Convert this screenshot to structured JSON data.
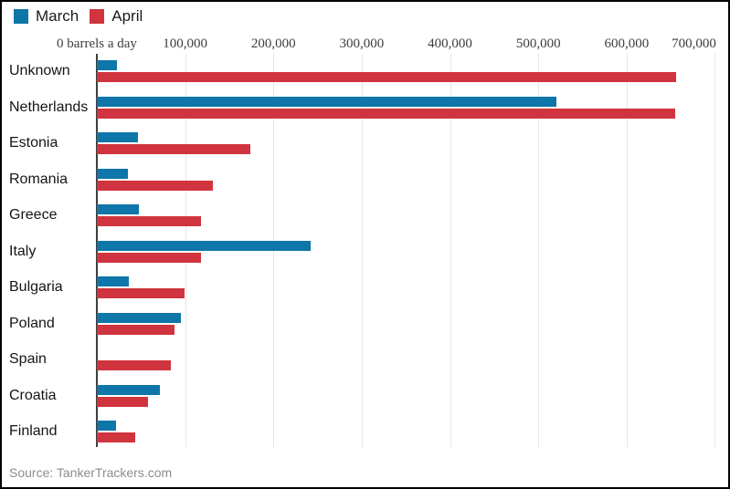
{
  "legend": {
    "items": [
      {
        "label": "March",
        "color": "#0e76a8"
      },
      {
        "label": "April",
        "color": "#d0343f"
      }
    ]
  },
  "source": {
    "label": "Source: TankerTrackers.com"
  },
  "chart_data": {
    "type": "bar",
    "orientation": "horizontal",
    "title": "",
    "xlabel": "barrels a day",
    "ylabel": "",
    "xlim": [
      0,
      715000
    ],
    "grid": true,
    "legend_position": "top-left",
    "x_ticks": [
      {
        "value": 0,
        "label": "0 barrels a day"
      },
      {
        "value": 100000,
        "label": "100,000"
      },
      {
        "value": 200000,
        "label": "200,000"
      },
      {
        "value": 300000,
        "label": "300,000"
      },
      {
        "value": 400000,
        "label": "400,000"
      },
      {
        "value": 500000,
        "label": "500,000"
      },
      {
        "value": 600000,
        "label": "600,000"
      },
      {
        "value": 700000,
        "label": "700,000"
      }
    ],
    "categories": [
      "Unknown",
      "Netherlands",
      "Estonia",
      "Romania",
      "Greece",
      "Italy",
      "Bulgaria",
      "Poland",
      "Spain",
      "Croatia",
      "Finland"
    ],
    "series": [
      {
        "name": "March",
        "color": "#0e76a8",
        "values": [
          23000,
          520000,
          47000,
          35000,
          48000,
          242000,
          36000,
          95000,
          0,
          71000,
          22000
        ]
      },
      {
        "name": "April",
        "color": "#d0343f",
        "values": [
          656000,
          655000,
          174000,
          131000,
          118000,
          118000,
          99000,
          88000,
          84000,
          58000,
          43000
        ]
      }
    ]
  }
}
